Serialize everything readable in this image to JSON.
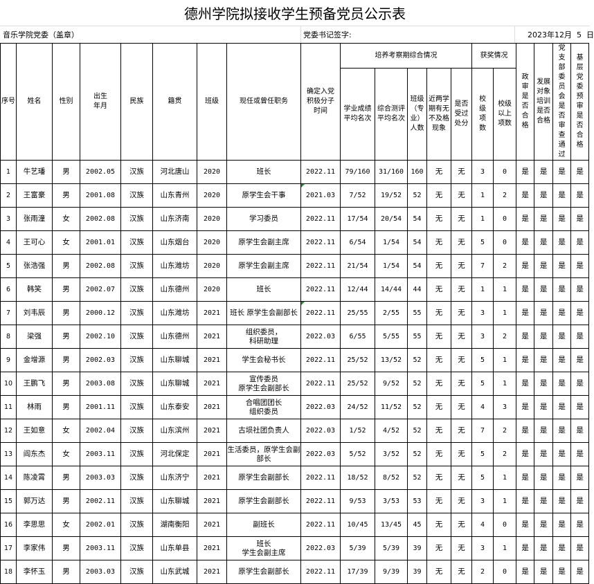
{
  "title": "德州学院拟接收学生预备党员公示表",
  "info": {
    "unit": "音乐学院党委（盖章）",
    "secretary_sign": "党委书记签字:",
    "date": "2023年12月  5  日"
  },
  "headers": {
    "seq": "序号",
    "name": "姓名",
    "gender": "性别",
    "birth": "出生\n年月",
    "ethnicity": "民族",
    "origin": "籍贯",
    "class": "班级",
    "position": "现任或曾任职务",
    "activist_time": "确定入党积极分子时间",
    "training_group": "培养考察期综合情况",
    "academic_rank": "学业成绩平均名次",
    "overall_rank": "综合测评平均名次",
    "class_size": "班级（专业）人数",
    "fail_record": "近两学期有无不及格现象",
    "punishment": "是否受过处分",
    "award_group": "获奖情况",
    "school_awards": "校级项数",
    "above_school_awards": "校级以上项数",
    "political_review": "政审是否合格",
    "training_pass": "发展对象培训是否合格",
    "branch_review": "党支部委员会是否审查通过",
    "committee_review": "基层党委预审是否合格"
  },
  "rows": [
    [
      "1",
      "牛艺璠",
      "男",
      "2002.05",
      "汉族",
      "河北唐山",
      "2020",
      "班长",
      "2022.11",
      "79/160",
      "31/160",
      "160",
      "无",
      "无",
      "3",
      "0",
      "是",
      "是",
      "是",
      "是"
    ],
    [
      "2",
      "王富豪",
      "男",
      "2001.08",
      "汉族",
      "山东青州",
      "2020",
      "原学生会干事",
      "2021.03",
      "7/52",
      "19/52",
      "52",
      "无",
      "无",
      "1",
      "2",
      "是",
      "是",
      "是",
      "是"
    ],
    [
      "3",
      "张雨潼",
      "女",
      "2002.08",
      "汉族",
      "山东济南",
      "2020",
      "学习委员",
      "2022.11",
      "17/54",
      "20/54",
      "54",
      "无",
      "无",
      "1",
      "0",
      "是",
      "是",
      "是",
      "是"
    ],
    [
      "4",
      "王可心",
      "女",
      "2001.01",
      "汉族",
      "山东烟台",
      "2020",
      "原学生会副主席",
      "2022.11",
      "6/54",
      "1/54",
      "54",
      "无",
      "无",
      "5",
      "0",
      "是",
      "是",
      "是",
      "是"
    ],
    [
      "5",
      "张浩强",
      "男",
      "2002.08",
      "汉族",
      "山东潍坊",
      "2020",
      "原学生会副主席",
      "2022.11",
      "21/54",
      "1/54",
      "54",
      "无",
      "无",
      "7",
      "2",
      "是",
      "是",
      "是",
      "是"
    ],
    [
      "6",
      "韩笑",
      "男",
      "2002.07",
      "汉族",
      "山东德州",
      "2020",
      "班长",
      "2022.11",
      "12/44",
      "14/44",
      "44",
      "无",
      "无",
      "1",
      "1",
      "是",
      "是",
      "是",
      "是"
    ],
    [
      "7",
      "刘韦辰",
      "男",
      "2000.12",
      "汉族",
      "山东潍坊",
      "2021",
      "班长  原学生会副部长",
      "2022.11",
      "25/55",
      "2/55",
      "55",
      "无",
      "无",
      "3",
      "1",
      "是",
      "是",
      "是",
      "是"
    ],
    [
      "8",
      "梁强",
      "男",
      "2002.10",
      "汉族",
      "山东德州",
      "2021",
      "组织委员，\n科研助理",
      "2022.03",
      "6/55",
      "5/55",
      "55",
      "无",
      "无",
      "3",
      "2",
      "是",
      "是",
      "是",
      "是"
    ],
    [
      "9",
      "金增源",
      "男",
      "2002.03",
      "汉族",
      "山东聊城",
      "2021",
      "学生会秘书长",
      "2022.11",
      "25/52",
      "13/52",
      "52",
      "无",
      "无",
      "5",
      "1",
      "是",
      "是",
      "是",
      "是"
    ],
    [
      "10",
      "王鹏飞",
      "男",
      "2003.08",
      "汉族",
      "山东聊城",
      "2021",
      "宣传委员\n原学生会副部长",
      "2022.11",
      "25/52",
      "9/52",
      "52",
      "无",
      "无",
      "5",
      "1",
      "是",
      "是",
      "是",
      "是"
    ],
    [
      "11",
      "林雨",
      "男",
      "2001.11",
      "汉族",
      "山东泰安",
      "2021",
      "合唱团团长\n组织委员",
      "2022.03",
      "24/52",
      "11/52",
      "52",
      "无",
      "无",
      "4",
      "3",
      "是",
      "是",
      "是",
      "是"
    ],
    [
      "12",
      "王如意",
      "女",
      "2002.04",
      "汉族",
      "山东滨州",
      "2021",
      "古埙社团负责人",
      "2022.03",
      "1/52",
      "4/52",
      "52",
      "无",
      "无",
      "7",
      "2",
      "是",
      "是",
      "是",
      "是"
    ],
    [
      "13",
      "阎东杰",
      "女",
      "2003.11",
      "汉族",
      "河北保定",
      "2021",
      "生活委员，原学生会副部长",
      "2022.03",
      "5/52",
      "3/52",
      "52",
      "无",
      "无",
      "5",
      "2",
      "是",
      "是",
      "是",
      "是"
    ],
    [
      "14",
      "陈凌霄",
      "男",
      "2003.03",
      "汉族",
      "山东济宁",
      "2021",
      "原学生会副部长",
      "2022.11",
      "18/52",
      "8/52",
      "52",
      "无",
      "无",
      "5",
      "1",
      "是",
      "是",
      "是",
      "是"
    ],
    [
      "15",
      "郭万达",
      "男",
      "2002.11",
      "汉族",
      "山东聊城",
      "2021",
      "原学生会副部长",
      "2022.11",
      "9/53",
      "3/53",
      "53",
      "无",
      "无",
      "3",
      "1",
      "是",
      "是",
      "是",
      "是"
    ],
    [
      "16",
      "李思思",
      "女",
      "2002.01",
      "汉族",
      "湖南衡阳",
      "2021",
      "副班长",
      "2022.11",
      "10/45",
      "13/45",
      "45",
      "无",
      "无",
      "4",
      "0",
      "是",
      "是",
      "是",
      "是"
    ],
    [
      "17",
      "李家伟",
      "男",
      "2003.11",
      "汉族",
      "山东单县",
      "2021",
      "班长\n学生会副主席",
      "2022.03",
      "5/39",
      "5/39",
      "39",
      "无",
      "无",
      "3",
      "1",
      "是",
      "是",
      "是",
      "是"
    ],
    [
      "18",
      "李怀玉",
      "男",
      "2003.03",
      "汉族",
      "山东武城",
      "2021",
      "原学生会副部长",
      "2022.11",
      "17/39",
      "9/39",
      "39",
      "无",
      "无",
      "2",
      "0",
      "是",
      "是",
      "是",
      "是"
    ]
  ],
  "marked_rows": [
    2,
    7
  ],
  "colors": {
    "grid": "#000000",
    "comment_marker": "#1a8f2a"
  }
}
